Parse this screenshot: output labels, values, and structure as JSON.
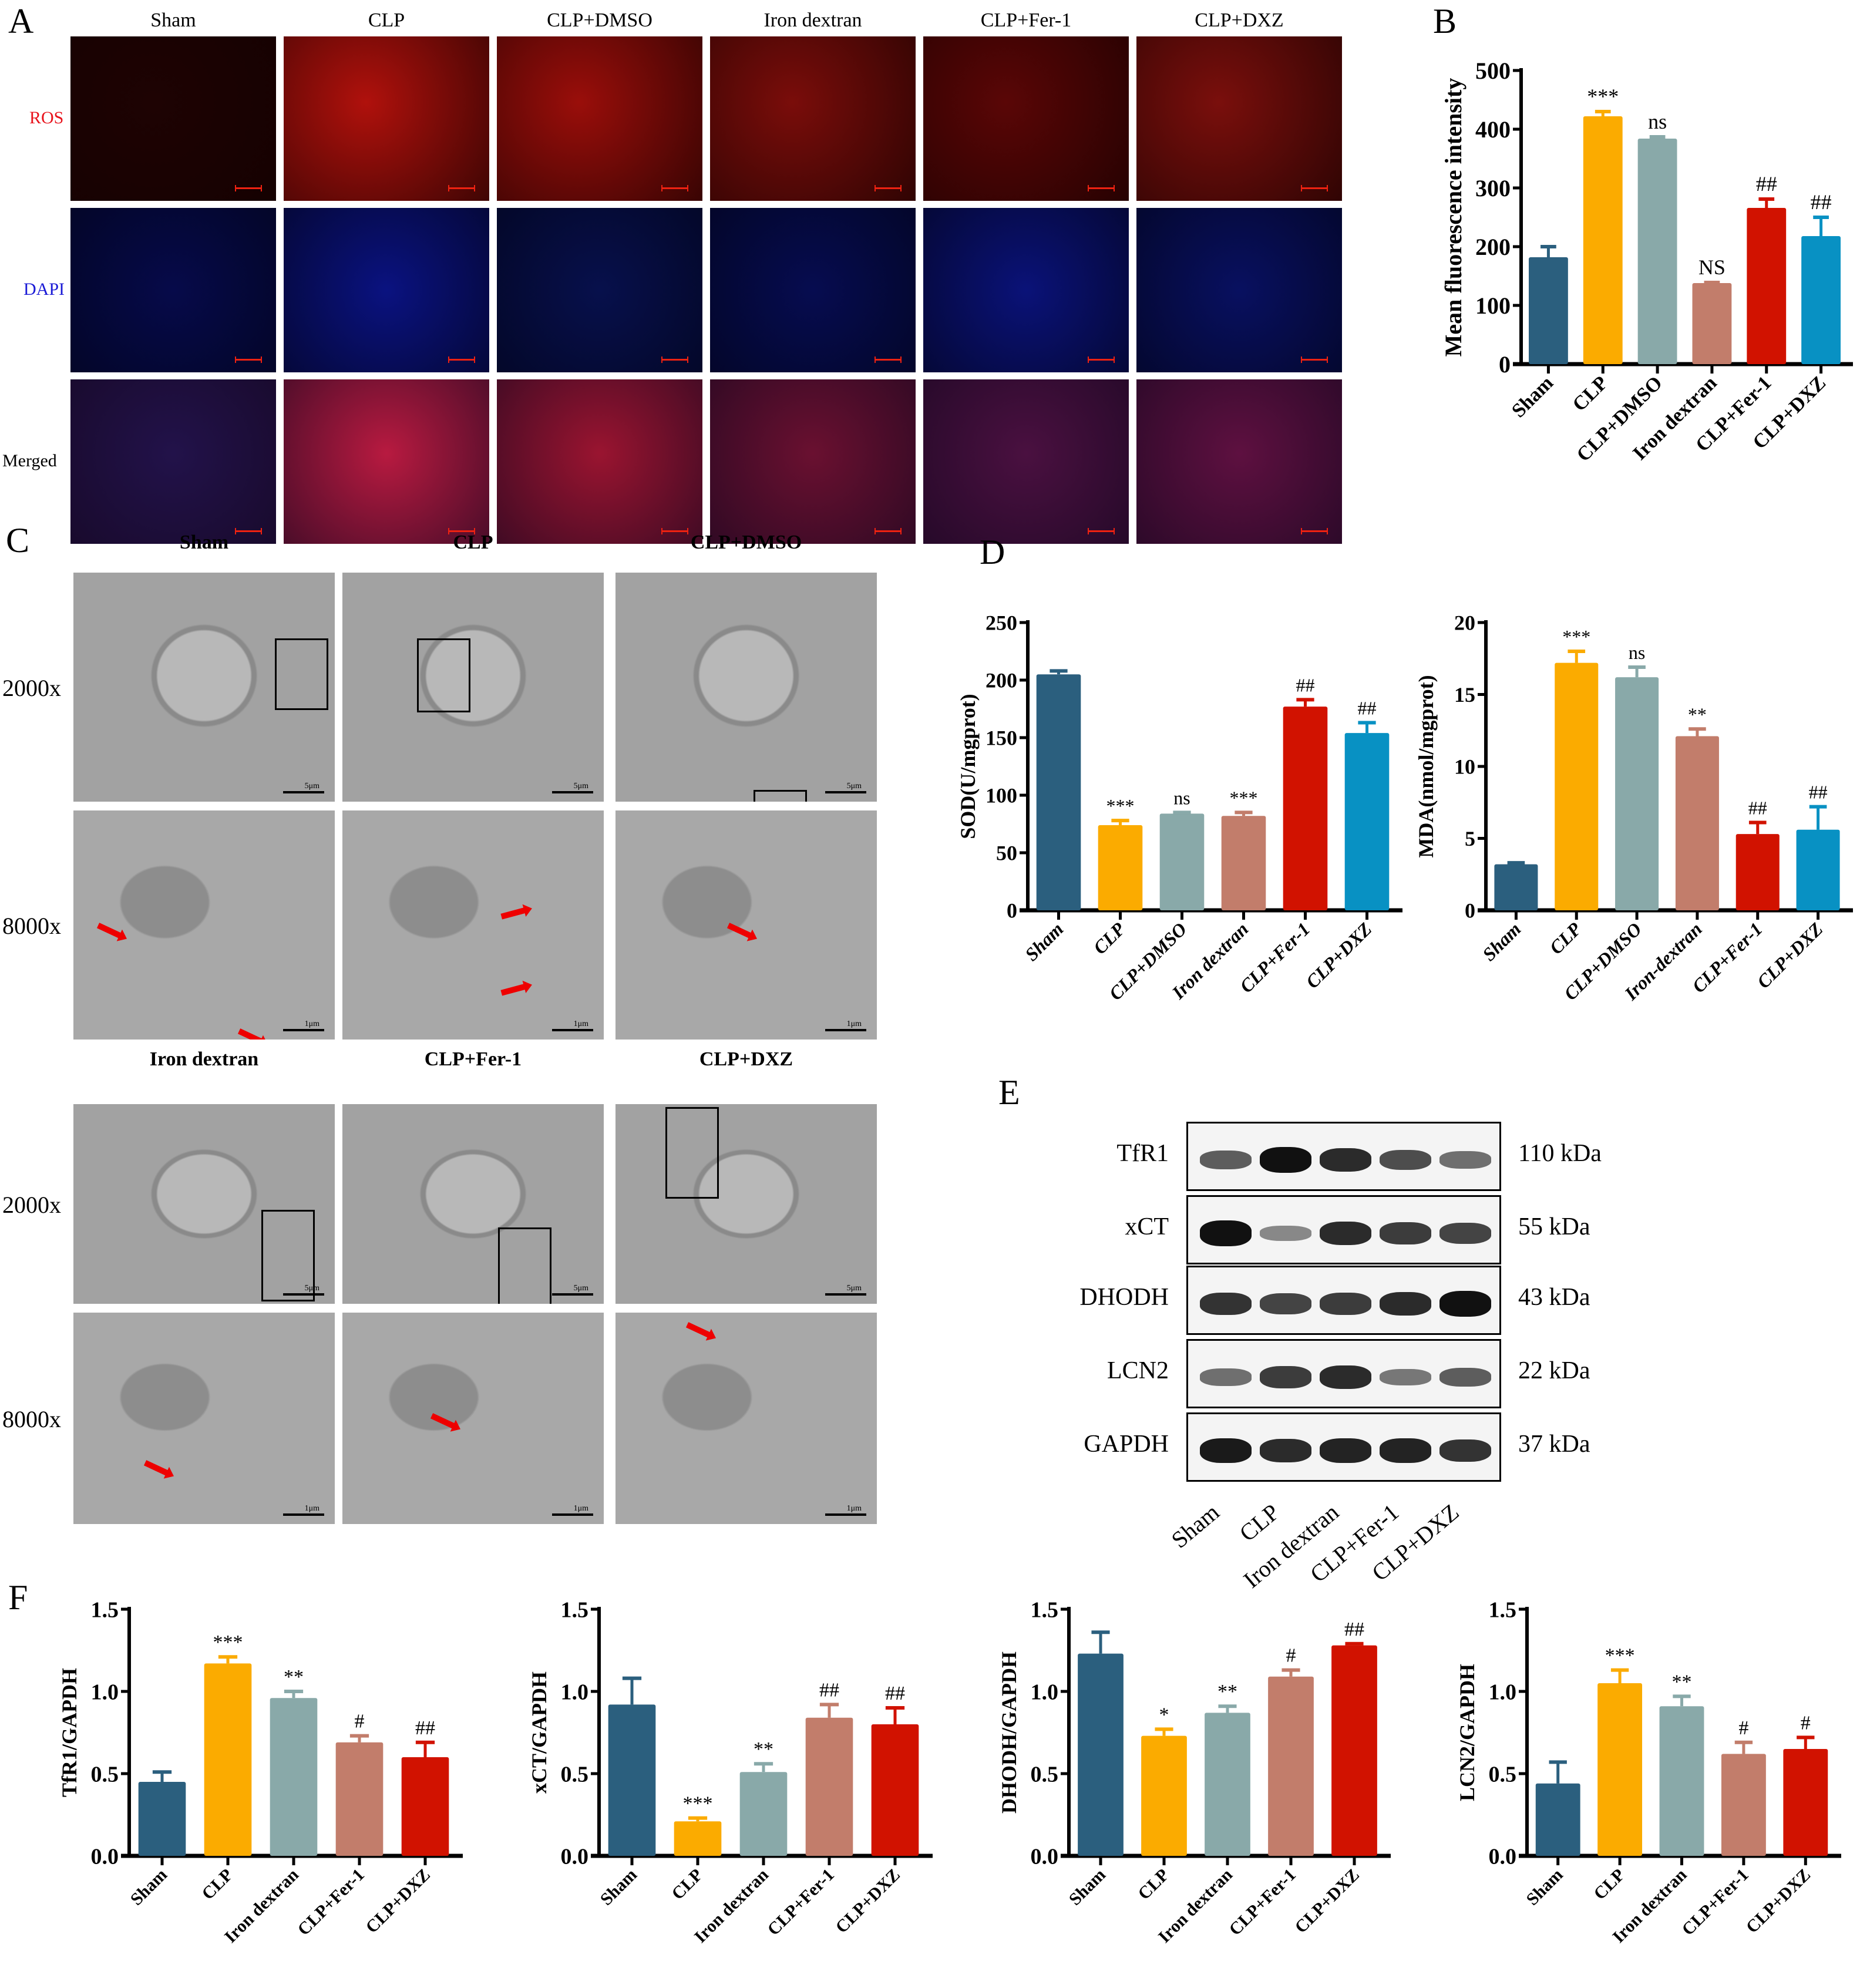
{
  "panels": {
    "A": {
      "letter": "A",
      "columns": [
        "Sham",
        "CLP",
        "CLP+DMSO",
        "Iron dextran",
        "CLP+Fer-1",
        "CLP+DXZ"
      ],
      "rows": [
        {
          "label": "ROS",
          "color": "#e8121b"
        },
        {
          "label": "DAPI",
          "color": "#1a1ad6"
        },
        {
          "label": "Merged",
          "color": "#000000"
        }
      ]
    },
    "B": {
      "letter": "B"
    },
    "C": {
      "letter": "C",
      "top_columns": [
        "Sham",
        "CLP",
        "CLP+DMSO"
      ],
      "bottom_columns": [
        "Iron dextran",
        "CLP+Fer-1",
        "CLP+DXZ"
      ],
      "magnifications": [
        "2000x",
        "8000x",
        "2000x",
        "8000x"
      ],
      "scale_5um": "5μm",
      "scale_1um": "1μm"
    },
    "D": {
      "letter": "D"
    },
    "E": {
      "letter": "E",
      "proteins": [
        {
          "name": "TfR1",
          "kda": "110 kDa",
          "intensity": [
            0.55,
            1.0,
            0.85,
            0.65,
            0.45
          ]
        },
        {
          "name": "xCT",
          "kda": "55 kDa",
          "intensity": [
            1.0,
            0.3,
            0.85,
            0.75,
            0.7
          ]
        },
        {
          "name": "DHODH",
          "kda": "43 kDa",
          "intensity": [
            0.8,
            0.7,
            0.75,
            0.85,
            1.0
          ]
        },
        {
          "name": "LCN2",
          "kda": "22 kDa",
          "intensity": [
            0.45,
            0.75,
            0.85,
            0.4,
            0.55
          ]
        },
        {
          "name": "GAPDH",
          "kda": "37 kDa",
          "intensity": [
            0.95,
            0.85,
            0.9,
            0.9,
            0.8
          ]
        }
      ],
      "lanes": [
        "Sham",
        "CLP",
        "Iron dextran",
        "CLP+Fer-1",
        "CLP+DXZ"
      ]
    },
    "F": {
      "letter": "F"
    }
  },
  "colors": {
    "Sham": "#2b5f7e",
    "CLP": "#fbab00",
    "CLP+DMSO": "#89a9a9",
    "Iron dextran": "#c27d6b",
    "CLP+Fer-1": "#d11200",
    "CLP+DXZ": "#0891c3"
  },
  "chart_data": [
    {
      "id": "B",
      "type": "bar",
      "title": "",
      "ylabel": "Mean fluorescence intensity",
      "xlabel": "",
      "categories": [
        "Sham",
        "CLP",
        "CLP+DMSO",
        "Iron dextran",
        "CLP+Fer-1",
        "CLP+DXZ"
      ],
      "values": [
        182,
        422,
        384,
        138,
        266,
        218
      ],
      "errors": [
        18,
        8,
        3,
        1,
        15,
        32
      ],
      "annotations": [
        "",
        "***",
        "ns",
        "NS",
        "##",
        "##"
      ],
      "ylim": [
        0,
        500
      ],
      "yticks": [
        0,
        100,
        200,
        300,
        400,
        500
      ],
      "grid": false,
      "legend": "none"
    },
    {
      "id": "D-SOD",
      "type": "bar",
      "ylabel": "SOD(U/mgprot)",
      "categories": [
        "Sham",
        "CLP",
        "CLP+DMSO",
        "Iron dextran",
        "CLP+Fer-1",
        "CLP+DXZ"
      ],
      "values": [
        205,
        74,
        84,
        82,
        177,
        154
      ],
      "errors": [
        3,
        4,
        1,
        3,
        6,
        9
      ],
      "annotations": [
        "",
        "***",
        "ns",
        "***",
        "##",
        "##"
      ],
      "ylim": [
        0,
        250
      ],
      "yticks": [
        0,
        50,
        100,
        150,
        200,
        250
      ],
      "grid": false,
      "legend": "none"
    },
    {
      "id": "D-MDA",
      "type": "bar",
      "ylabel": "MDA(nmol/mgprot)",
      "categories": [
        "Sham",
        "CLP",
        "CLP+DMSO",
        "Iron-dextran",
        "CLP+Fer-1",
        "CLP+DXZ"
      ],
      "values": [
        3.2,
        17.2,
        16.2,
        12.1,
        5.3,
        5.6
      ],
      "errors": [
        0.1,
        0.8,
        0.7,
        0.5,
        0.8,
        1.6
      ],
      "annotations": [
        "",
        "***",
        "ns",
        "**",
        "##",
        "##"
      ],
      "ylim": [
        0,
        20
      ],
      "yticks": [
        0,
        5,
        10,
        15,
        20
      ],
      "grid": false,
      "legend": "none"
    },
    {
      "id": "F-TfR1",
      "type": "bar",
      "ylabel": "TfR1/GAPDH",
      "categories": [
        "Sham",
        "CLP",
        "Iron dextran",
        "CLP+Fer-1",
        "CLP+DXZ"
      ],
      "colors": [
        "#2b5f7e",
        "#fbab00",
        "#89a9a9",
        "#c27d6b",
        "#d11200"
      ],
      "values": [
        0.45,
        1.17,
        0.96,
        0.69,
        0.6
      ],
      "errors": [
        0.06,
        0.04,
        0.04,
        0.04,
        0.09
      ],
      "annotations": [
        "",
        "***",
        "**",
        "#",
        "##"
      ],
      "ylim": [
        0,
        1.5
      ],
      "yticks": [
        "0.0",
        "0.5",
        "1.0",
        "1.5"
      ],
      "grid": false,
      "legend": "none"
    },
    {
      "id": "F-xCT",
      "type": "bar",
      "ylabel": "xCT/GAPDH",
      "categories": [
        "Sham",
        "CLP",
        "Iron dextran",
        "CLP+Fer-1",
        "CLP+DXZ"
      ],
      "colors": [
        "#2b5f7e",
        "#fbab00",
        "#89a9a9",
        "#c27d6b",
        "#d11200"
      ],
      "values": [
        0.92,
        0.21,
        0.51,
        0.84,
        0.8
      ],
      "errors": [
        0.16,
        0.02,
        0.05,
        0.08,
        0.1
      ],
      "annotations": [
        "",
        "***",
        "**",
        "##",
        "##"
      ],
      "ylim": [
        0,
        1.5
      ],
      "yticks": [
        "0.0",
        "0.5",
        "1.0",
        "1.5"
      ],
      "grid": false,
      "legend": "none"
    },
    {
      "id": "F-DHODH",
      "type": "bar",
      "ylabel": "DHODH/GAPDH",
      "categories": [
        "Sham",
        "CLP",
        "Iron dextran",
        "CLP+Fer-1",
        "CLP+DXZ"
      ],
      "colors": [
        "#2b5f7e",
        "#fbab00",
        "#89a9a9",
        "#c27d6b",
        "#d11200"
      ],
      "values": [
        1.23,
        0.73,
        0.87,
        1.09,
        1.28
      ],
      "errors": [
        0.13,
        0.04,
        0.04,
        0.04,
        0.01
      ],
      "annotations": [
        "",
        "*",
        "**",
        "#",
        "##"
      ],
      "ylim": [
        0,
        1.5
      ],
      "yticks": [
        "0.0",
        "0.5",
        "1.0",
        "1.5"
      ],
      "grid": false,
      "legend": "none"
    },
    {
      "id": "F-LCN2",
      "type": "bar",
      "ylabel": "LCN2/GAPDH",
      "categories": [
        "Sham",
        "CLP",
        "Iron dextran",
        "CLP+Fer-1",
        "CLP+DXZ"
      ],
      "colors": [
        "#2b5f7e",
        "#fbab00",
        "#89a9a9",
        "#c27d6b",
        "#d11200"
      ],
      "values": [
        0.44,
        1.05,
        0.91,
        0.62,
        0.65
      ],
      "errors": [
        0.13,
        0.08,
        0.06,
        0.07,
        0.07
      ],
      "annotations": [
        "",
        "***",
        "**",
        "#",
        "#"
      ],
      "ylim": [
        0,
        1.5
      ],
      "yticks": [
        "0.0",
        "0.5",
        "1.0",
        "1.5"
      ],
      "grid": false,
      "legend": "none"
    }
  ]
}
